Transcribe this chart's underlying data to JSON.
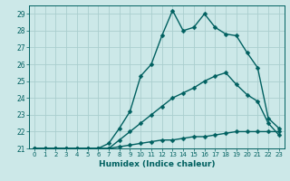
{
  "xlabel": "Humidex (Indice chaleur)",
  "bg_color": "#cce8e8",
  "grid_color": "#aacece",
  "line_color": "#006060",
  "xlim": [
    -0.5,
    23.5
  ],
  "ylim": [
    21.0,
    29.5
  ],
  "xticks": [
    0,
    1,
    2,
    3,
    4,
    5,
    6,
    7,
    8,
    9,
    10,
    11,
    12,
    13,
    14,
    15,
    16,
    17,
    18,
    19,
    20,
    21,
    22,
    23
  ],
  "yticks": [
    21,
    22,
    23,
    24,
    25,
    26,
    27,
    28,
    29
  ],
  "series": [
    {
      "x": [
        0,
        1,
        2,
        3,
        4,
        5,
        6,
        7,
        8,
        9,
        10,
        11,
        12,
        13,
        14,
        15,
        16,
        17,
        18,
        19,
        20,
        21,
        22,
        23
      ],
      "y": [
        21.0,
        21.0,
        21.0,
        21.0,
        21.0,
        21.0,
        21.0,
        21.3,
        22.2,
        23.2,
        25.3,
        26.0,
        27.7,
        29.2,
        28.0,
        28.2,
        29.0,
        28.2,
        27.8,
        27.7,
        26.7,
        25.8,
        22.8,
        22.2
      ]
    },
    {
      "x": [
        0,
        1,
        2,
        3,
        4,
        5,
        6,
        7,
        8,
        9,
        10,
        11,
        12,
        13,
        14,
        15,
        16,
        17,
        18,
        19,
        20,
        21,
        22,
        23
      ],
      "y": [
        21.0,
        21.0,
        21.0,
        21.0,
        21.0,
        21.0,
        21.0,
        21.0,
        21.5,
        22.0,
        22.5,
        23.0,
        23.5,
        24.0,
        24.3,
        24.6,
        25.0,
        25.3,
        25.5,
        24.8,
        24.2,
        23.8,
        22.5,
        21.8
      ]
    },
    {
      "x": [
        0,
        1,
        2,
        3,
        4,
        5,
        6,
        7,
        8,
        9,
        10,
        11,
        12,
        13,
        14,
        15,
        16,
        17,
        18,
        19,
        20,
        21,
        22,
        23
      ],
      "y": [
        21.0,
        21.0,
        21.0,
        21.0,
        21.0,
        21.0,
        21.0,
        21.0,
        21.1,
        21.2,
        21.3,
        21.4,
        21.5,
        21.5,
        21.6,
        21.7,
        21.7,
        21.8,
        21.9,
        22.0,
        22.0,
        22.0,
        22.0,
        22.0
      ]
    }
  ],
  "markersize": 2.5,
  "linewidth": 1.0
}
